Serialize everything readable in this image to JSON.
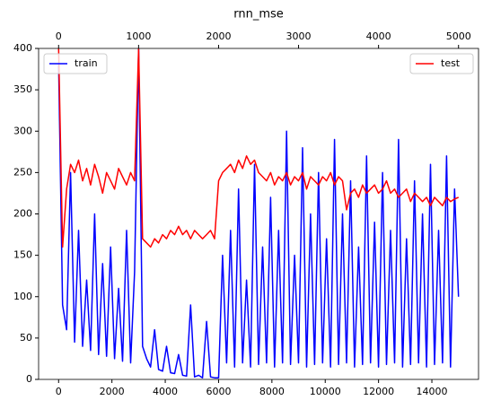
{
  "chart_data": {
    "type": "line",
    "title": "rnn_mse",
    "xlim": [
      -750,
      15750
    ],
    "xticks": [
      0,
      2000,
      4000,
      6000,
      8000,
      10000,
      12000,
      14000
    ],
    "x2lim": [
      -250,
      5250
    ],
    "x2ticks": [
      0,
      1000,
      2000,
      3000,
      4000,
      5000
    ],
    "ylim": [
      0,
      400
    ],
    "yticks": [
      0,
      50,
      100,
      150,
      200,
      250,
      300,
      350,
      400
    ],
    "series": [
      {
        "name": "train",
        "color": "#0000ff",
        "axis": "x",
        "legend": "upper left",
        "x": [
          0,
          150,
          300,
          450,
          600,
          750,
          900,
          1050,
          1200,
          1350,
          1500,
          1650,
          1800,
          1950,
          2100,
          2250,
          2400,
          2550,
          2700,
          2850,
          3000,
          3150,
          3300,
          3450,
          3600,
          3750,
          3900,
          4050,
          4200,
          4350,
          4500,
          4650,
          4800,
          4950,
          5100,
          5250,
          5400,
          5550,
          5700,
          5850,
          6000,
          6150,
          6300,
          6450,
          6600,
          6750,
          6900,
          7050,
          7200,
          7350,
          7500,
          7650,
          7800,
          7950,
          8100,
          8250,
          8400,
          8550,
          8700,
          8850,
          9000,
          9150,
          9300,
          9450,
          9600,
          9750,
          9900,
          10050,
          10200,
          10350,
          10500,
          10650,
          10800,
          10950,
          11100,
          11250,
          11400,
          11550,
          11700,
          11850,
          12000,
          12150,
          12300,
          12450,
          12600,
          12750,
          12900,
          13050,
          13200,
          13350,
          13500,
          13650,
          13800,
          13950,
          14100,
          14250,
          14400,
          14550,
          14700,
          14850,
          15000
        ],
        "values": [
          380,
          90,
          60,
          250,
          45,
          180,
          40,
          120,
          35,
          200,
          30,
          140,
          28,
          160,
          25,
          110,
          22,
          180,
          20,
          130,
          400,
          40,
          25,
          15,
          60,
          12,
          10,
          40,
          8,
          7,
          30,
          5,
          4,
          90,
          3,
          5,
          2,
          70,
          3,
          2,
          2,
          150,
          20,
          180,
          15,
          230,
          20,
          120,
          15,
          260,
          18,
          160,
          20,
          220,
          15,
          180,
          20,
          300,
          18,
          150,
          20,
          280,
          15,
          200,
          18,
          250,
          20,
          170,
          15,
          290,
          18,
          200,
          20,
          240,
          15,
          160,
          18,
          270,
          20,
          190,
          15,
          250,
          18,
          180,
          20,
          290,
          15,
          170,
          18,
          240,
          20,
          200,
          15,
          260,
          18,
          180,
          20,
          270,
          15,
          230,
          100
        ]
      },
      {
        "name": "test",
        "color": "#ff0000",
        "axis": "x2",
        "legend": "upper right",
        "x": [
          0,
          50,
          100,
          150,
          200,
          250,
          300,
          350,
          400,
          450,
          500,
          550,
          600,
          650,
          700,
          750,
          800,
          850,
          900,
          950,
          1000,
          1050,
          1100,
          1150,
          1200,
          1250,
          1300,
          1350,
          1400,
          1450,
          1500,
          1550,
          1600,
          1650,
          1700,
          1750,
          1800,
          1850,
          1900,
          1950,
          2000,
          2050,
          2100,
          2150,
          2200,
          2250,
          2300,
          2350,
          2400,
          2450,
          2500,
          2550,
          2600,
          2650,
          2700,
          2750,
          2800,
          2850,
          2900,
          2950,
          3000,
          3050,
          3100,
          3150,
          3200,
          3250,
          3300,
          3350,
          3400,
          3450,
          3500,
          3550,
          3600,
          3650,
          3700,
          3750,
          3800,
          3850,
          3900,
          3950,
          4000,
          4050,
          4100,
          4150,
          4200,
          4250,
          4300,
          4350,
          4400,
          4450,
          4500,
          4550,
          4600,
          4650,
          4700,
          4750,
          4800,
          4850,
          4900,
          4950,
          5000
        ],
        "values": [
          400,
          160,
          230,
          260,
          250,
          265,
          240,
          255,
          235,
          260,
          245,
          225,
          250,
          240,
          230,
          255,
          245,
          235,
          250,
          240,
          400,
          170,
          165,
          160,
          170,
          165,
          175,
          170,
          180,
          175,
          185,
          175,
          180,
          170,
          180,
          175,
          170,
          175,
          180,
          170,
          240,
          250,
          255,
          260,
          250,
          265,
          255,
          270,
          260,
          265,
          250,
          245,
          240,
          250,
          235,
          245,
          240,
          250,
          235,
          245,
          240,
          250,
          230,
          245,
          240,
          235,
          245,
          240,
          250,
          235,
          245,
          240,
          205,
          225,
          230,
          220,
          235,
          225,
          230,
          235,
          225,
          230,
          240,
          225,
          230,
          220,
          225,
          230,
          215,
          225,
          220,
          215,
          220,
          210,
          220,
          215,
          210,
          220,
          215,
          218,
          220
        ]
      }
    ]
  }
}
